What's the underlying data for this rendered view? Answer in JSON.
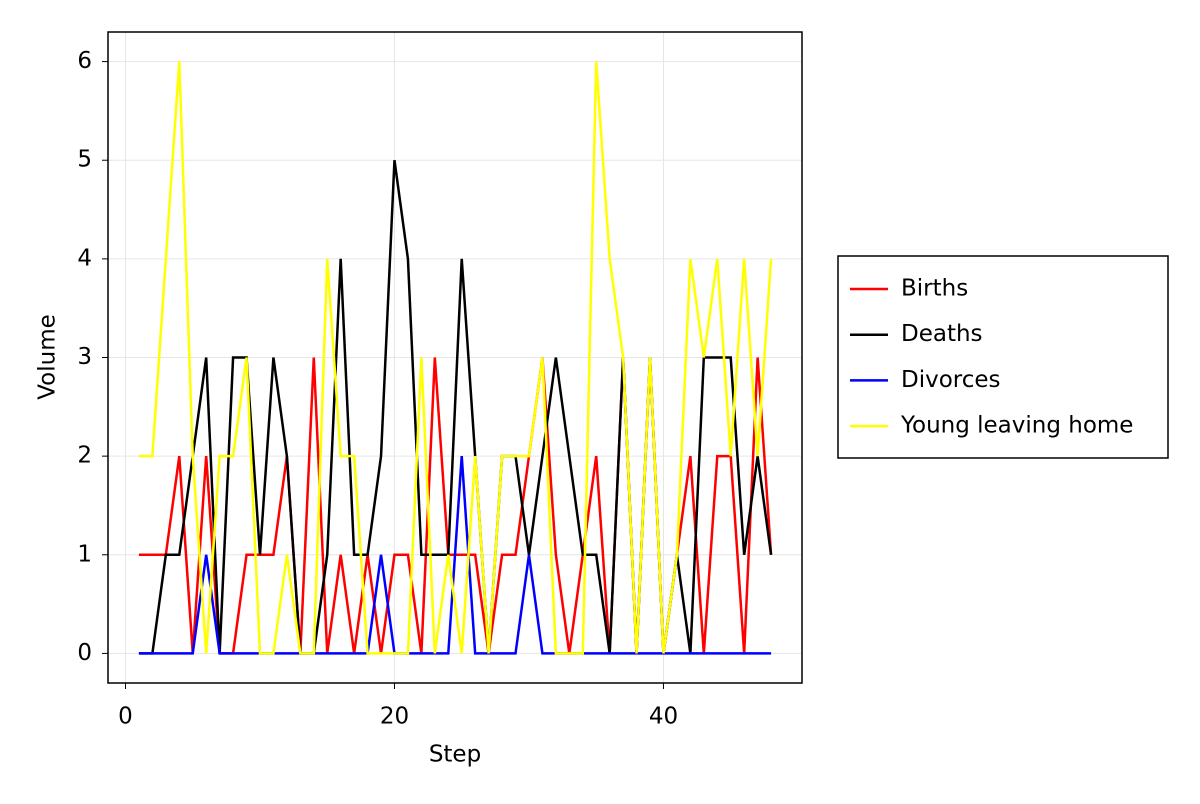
{
  "chart_data": {
    "type": "line",
    "x_label": "Step",
    "y_label": "Volume",
    "x": [
      1,
      2,
      3,
      4,
      5,
      6,
      7,
      8,
      9,
      10,
      11,
      12,
      13,
      14,
      15,
      16,
      17,
      18,
      19,
      20,
      21,
      22,
      23,
      24,
      25,
      26,
      27,
      28,
      29,
      30,
      31,
      32,
      33,
      34,
      35,
      36,
      37,
      38,
      39,
      40,
      41,
      42,
      43,
      44,
      45,
      46,
      47,
      48
    ],
    "series": [
      {
        "name": "Births",
        "color": "#ff0000",
        "values": [
          1,
          1,
          1,
          2,
          0,
          2,
          0,
          0,
          1,
          1,
          1,
          2,
          0,
          3,
          0,
          1,
          0,
          1,
          0,
          1,
          1,
          0,
          3,
          1,
          1,
          1,
          0,
          1,
          1,
          2,
          3,
          1,
          0,
          1,
          2,
          0,
          3,
          0,
          3,
          0,
          1,
          2,
          0,
          2,
          2,
          0,
          3,
          1
        ]
      },
      {
        "name": "Deaths",
        "color": "#000000",
        "values": [
          0,
          0,
          1,
          1,
          2,
          3,
          0,
          3,
          3,
          1,
          3,
          2,
          0,
          0,
          1,
          4,
          1,
          1,
          2,
          5,
          4,
          1,
          1,
          1,
          4,
          2,
          0,
          2,
          2,
          1,
          2,
          3,
          2,
          1,
          1,
          0,
          3,
          0,
          3,
          0,
          1,
          0,
          3,
          3,
          3,
          1,
          2,
          1
        ]
      },
      {
        "name": "Divorces",
        "color": "#0000ff",
        "values": [
          0,
          0,
          0,
          0,
          0,
          1,
          0,
          0,
          0,
          0,
          0,
          0,
          0,
          0,
          0,
          0,
          0,
          0,
          1,
          0,
          0,
          0,
          0,
          0,
          2,
          0,
          0,
          0,
          0,
          1,
          0,
          0,
          0,
          0,
          0,
          0,
          0,
          0,
          0,
          0,
          0,
          0,
          0,
          0,
          0,
          0,
          0,
          0
        ]
      },
      {
        "name": "Young leaving home",
        "color": "#ffff00",
        "values": [
          2,
          2,
          4,
          6,
          2,
          0,
          2,
          2,
          3,
          0,
          0,
          1,
          0,
          0,
          4,
          2,
          2,
          0,
          0,
          0,
          0,
          3,
          0,
          1,
          0,
          2,
          0,
          2,
          2,
          2,
          3,
          0,
          0,
          0,
          6,
          4,
          3,
          0,
          3,
          0,
          1,
          4,
          3,
          4,
          2,
          4,
          2,
          4
        ]
      }
    ],
    "xlim": [
      -1.3,
      50.3
    ],
    "xticks": [
      0,
      20,
      40
    ],
    "ylim": [
      -0.3,
      6.3
    ],
    "yticks": [
      0,
      1,
      2,
      3,
      4,
      5,
      6
    ],
    "grid": true,
    "legend": "right"
  }
}
